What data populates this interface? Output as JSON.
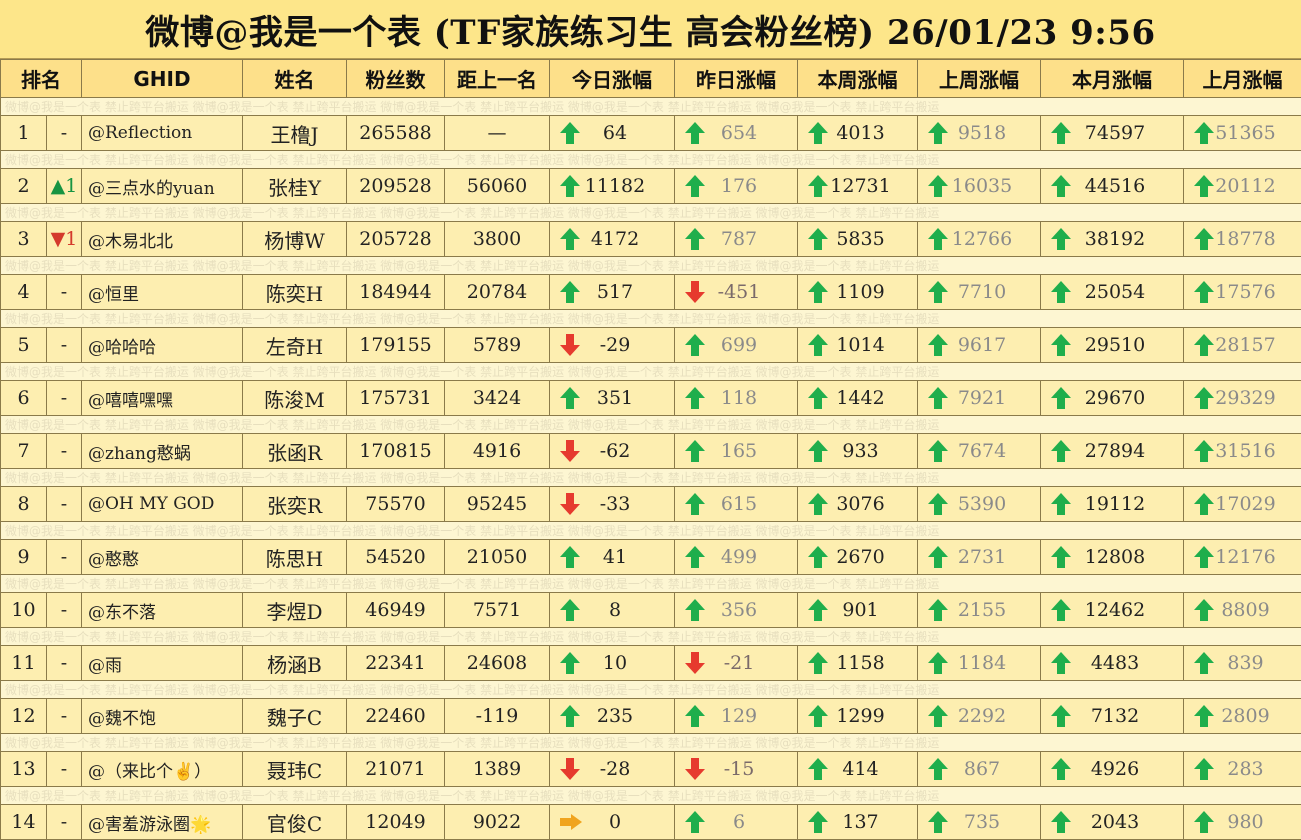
{
  "title": "微博@我是一个表 (TF家族练习生 高会粉丝榜)  26/01/23 9:56",
  "watermark": "微博@我是一个表    禁止跨平台搬运    微博@我是一个表    禁止跨平台搬运    微博@我是一个表    禁止跨平台搬运    微博@我是一个表    禁止跨平台搬运    微博@我是一个表    禁止跨平台搬运",
  "headers": [
    "排名",
    "GHID",
    "姓名",
    "粉丝数",
    "距上一名",
    "今日涨幅",
    "昨日涨幅",
    "本周涨幅",
    "上周涨幅",
    "本月涨幅",
    "上月涨幅"
  ],
  "colors": {
    "up": "#1fae4c",
    "down": "#e63a2e",
    "flat": "#f0a41e",
    "title_bg": "#fde68a",
    "row_bg": "#fdeeb0"
  },
  "rows": [
    {
      "rank": "1",
      "move": "-",
      "move_dir": "none",
      "ghid": "@Reflection",
      "name": "王橹J",
      "fans": "265588",
      "gap": "—",
      "gap_neg": false,
      "today": {
        "dir": "up",
        "v": "64"
      },
      "yday": {
        "dir": "up",
        "v": "654"
      },
      "week": {
        "dir": "up",
        "v": "4013"
      },
      "lweek": {
        "dir": "up",
        "v": "9518"
      },
      "month": {
        "dir": "up",
        "v": "74597"
      },
      "lmonth": {
        "dir": "up",
        "v": "51365"
      }
    },
    {
      "rank": "2",
      "move": "▲1",
      "move_dir": "up",
      "ghid": "@三点水的yuan",
      "name": "张桂Y",
      "fans": "209528",
      "gap": "56060",
      "gap_neg": false,
      "today": {
        "dir": "up",
        "v": "11182"
      },
      "yday": {
        "dir": "up",
        "v": "176"
      },
      "week": {
        "dir": "up",
        "v": "12731"
      },
      "lweek": {
        "dir": "up",
        "v": "16035"
      },
      "month": {
        "dir": "up",
        "v": "44516"
      },
      "lmonth": {
        "dir": "up",
        "v": "20112"
      }
    },
    {
      "rank": "3",
      "move": "▼1",
      "move_dir": "down",
      "ghid": "@木易北北",
      "name": "杨博W",
      "fans": "205728",
      "gap": "3800",
      "gap_neg": false,
      "today": {
        "dir": "up",
        "v": "4172"
      },
      "yday": {
        "dir": "up",
        "v": "787"
      },
      "week": {
        "dir": "up",
        "v": "5835"
      },
      "lweek": {
        "dir": "up",
        "v": "12766"
      },
      "month": {
        "dir": "up",
        "v": "38192"
      },
      "lmonth": {
        "dir": "up",
        "v": "18778"
      }
    },
    {
      "rank": "4",
      "move": "-",
      "move_dir": "none",
      "ghid": "@恒里",
      "name": "陈奕H",
      "fans": "184944",
      "gap": "20784",
      "gap_neg": false,
      "today": {
        "dir": "up",
        "v": "517"
      },
      "yday": {
        "dir": "down",
        "v": "-451"
      },
      "week": {
        "dir": "up",
        "v": "1109"
      },
      "lweek": {
        "dir": "up",
        "v": "7710"
      },
      "month": {
        "dir": "up",
        "v": "25054"
      },
      "lmonth": {
        "dir": "up",
        "v": "17576"
      }
    },
    {
      "rank": "5",
      "move": "-",
      "move_dir": "none",
      "ghid": "@哈哈哈",
      "name": "左奇H",
      "fans": "179155",
      "gap": "5789",
      "gap_neg": false,
      "today": {
        "dir": "down",
        "v": "-29"
      },
      "yday": {
        "dir": "up",
        "v": "699"
      },
      "week": {
        "dir": "up",
        "v": "1014"
      },
      "lweek": {
        "dir": "up",
        "v": "9617"
      },
      "month": {
        "dir": "up",
        "v": "29510"
      },
      "lmonth": {
        "dir": "up",
        "v": "28157"
      }
    },
    {
      "rank": "6",
      "move": "-",
      "move_dir": "none",
      "ghid": "@嘻嘻嘿嘿",
      "name": "陈浚M",
      "fans": "175731",
      "gap": "3424",
      "gap_neg": false,
      "today": {
        "dir": "up",
        "v": "351"
      },
      "yday": {
        "dir": "up",
        "v": "118"
      },
      "week": {
        "dir": "up",
        "v": "1442"
      },
      "lweek": {
        "dir": "up",
        "v": "7921"
      },
      "month": {
        "dir": "up",
        "v": "29670"
      },
      "lmonth": {
        "dir": "up",
        "v": "29329"
      }
    },
    {
      "rank": "7",
      "move": "-",
      "move_dir": "none",
      "ghid": "@zhang憨蜗",
      "name": "张函R",
      "fans": "170815",
      "gap": "4916",
      "gap_neg": false,
      "today": {
        "dir": "down",
        "v": "-62"
      },
      "yday": {
        "dir": "up",
        "v": "165"
      },
      "week": {
        "dir": "up",
        "v": "933"
      },
      "lweek": {
        "dir": "up",
        "v": "7674"
      },
      "month": {
        "dir": "up",
        "v": "27894"
      },
      "lmonth": {
        "dir": "up",
        "v": "31516"
      }
    },
    {
      "rank": "8",
      "move": "-",
      "move_dir": "none",
      "ghid": "@OH MY GOD",
      "name": "张奕R",
      "fans": "75570",
      "gap": "95245",
      "gap_neg": false,
      "today": {
        "dir": "down",
        "v": "-33"
      },
      "yday": {
        "dir": "up",
        "v": "615"
      },
      "week": {
        "dir": "up",
        "v": "3076"
      },
      "lweek": {
        "dir": "up",
        "v": "5390"
      },
      "month": {
        "dir": "up",
        "v": "19112"
      },
      "lmonth": {
        "dir": "up",
        "v": "17029"
      }
    },
    {
      "rank": "9",
      "move": "-",
      "move_dir": "none",
      "ghid": "@憨憨",
      "name": "陈思H",
      "fans": "54520",
      "gap": "21050",
      "gap_neg": false,
      "today": {
        "dir": "up",
        "v": "41"
      },
      "yday": {
        "dir": "up",
        "v": "499"
      },
      "week": {
        "dir": "up",
        "v": "2670"
      },
      "lweek": {
        "dir": "up",
        "v": "2731"
      },
      "month": {
        "dir": "up",
        "v": "12808"
      },
      "lmonth": {
        "dir": "up",
        "v": "12176"
      }
    },
    {
      "rank": "10",
      "move": "-",
      "move_dir": "none",
      "ghid": "@东不落",
      "name": "李煜D",
      "fans": "46949",
      "gap": "7571",
      "gap_neg": false,
      "today": {
        "dir": "up",
        "v": "8"
      },
      "yday": {
        "dir": "up",
        "v": "356"
      },
      "week": {
        "dir": "up",
        "v": "901"
      },
      "lweek": {
        "dir": "up",
        "v": "2155"
      },
      "month": {
        "dir": "up",
        "v": "12462"
      },
      "lmonth": {
        "dir": "up",
        "v": "8809"
      }
    },
    {
      "rank": "11",
      "move": "-",
      "move_dir": "none",
      "ghid": "@雨",
      "name": "杨涵B",
      "fans": "22341",
      "gap": "24608",
      "gap_neg": false,
      "today": {
        "dir": "up",
        "v": "10"
      },
      "yday": {
        "dir": "down",
        "v": "-21"
      },
      "week": {
        "dir": "up",
        "v": "1158"
      },
      "lweek": {
        "dir": "up",
        "v": "1184"
      },
      "month": {
        "dir": "up",
        "v": "4483"
      },
      "lmonth": {
        "dir": "up",
        "v": "839"
      }
    },
    {
      "rank": "12",
      "move": "-",
      "move_dir": "none",
      "ghid": "@魏不饱",
      "name": "魏子C",
      "fans": "22460",
      "gap": "-119",
      "gap_neg": true,
      "today": {
        "dir": "up",
        "v": "235"
      },
      "yday": {
        "dir": "up",
        "v": "129"
      },
      "week": {
        "dir": "up",
        "v": "1299"
      },
      "lweek": {
        "dir": "up",
        "v": "2292"
      },
      "month": {
        "dir": "up",
        "v": "7132"
      },
      "lmonth": {
        "dir": "up",
        "v": "2809"
      }
    },
    {
      "rank": "13",
      "move": "-",
      "move_dir": "none",
      "ghid": "@（来比个✌️）",
      "name": "聂玮C",
      "fans": "21071",
      "gap": "1389",
      "gap_neg": false,
      "today": {
        "dir": "down",
        "v": "-28"
      },
      "yday": {
        "dir": "down",
        "v": "-15"
      },
      "week": {
        "dir": "up",
        "v": "414"
      },
      "lweek": {
        "dir": "up",
        "v": "867"
      },
      "month": {
        "dir": "up",
        "v": "4926"
      },
      "lmonth": {
        "dir": "up",
        "v": "283"
      }
    },
    {
      "rank": "14",
      "move": "-",
      "move_dir": "none",
      "ghid": "@害羞游泳圈🌟",
      "name": "官俊C",
      "fans": "12049",
      "gap": "9022",
      "gap_neg": false,
      "today": {
        "dir": "flat",
        "v": "0"
      },
      "yday": {
        "dir": "up",
        "v": "6"
      },
      "week": {
        "dir": "up",
        "v": "137"
      },
      "lweek": {
        "dir": "up",
        "v": "735"
      },
      "month": {
        "dir": "up",
        "v": "2043"
      },
      "lmonth": {
        "dir": "up",
        "v": "980"
      }
    }
  ]
}
